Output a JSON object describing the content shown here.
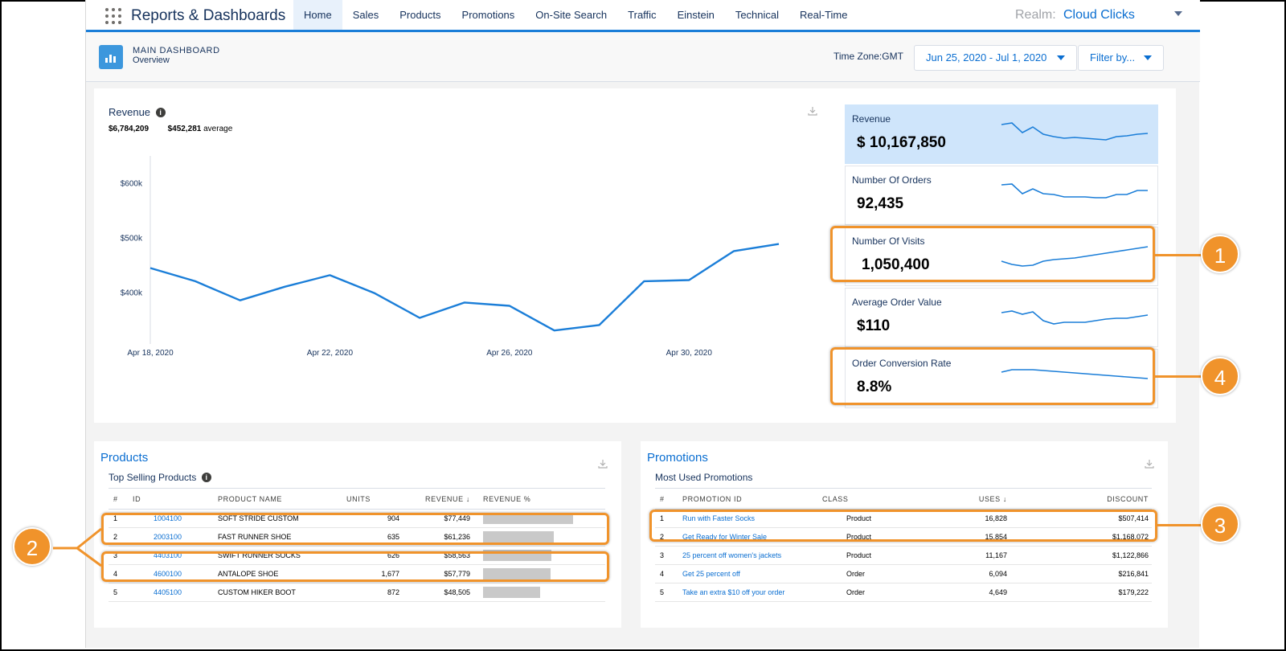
{
  "app": {
    "title": "Reports & Dashboards"
  },
  "nav": {
    "tabs": [
      "Home",
      "Sales",
      "Products",
      "Promotions",
      "On-Site Search",
      "Traffic",
      "Einstein",
      "Technical",
      "Real-Time"
    ],
    "active": "Home"
  },
  "realm": {
    "label": "Realm:",
    "value": "Cloud Clicks"
  },
  "header": {
    "title": "MAIN DASHBOARD",
    "subtitle": "Overview",
    "timezone": "Time Zone:GMT",
    "date_range": "Jun 25, 2020 - Jul 1, 2020",
    "filter": "Filter by..."
  },
  "revenue": {
    "title": "Revenue",
    "total": "$6,784,209",
    "average_value": "$452,281",
    "average_label": "average"
  },
  "chart_data": {
    "type": "line",
    "x": [
      "Apr 18, 2020",
      "Apr 19, 2020",
      "Apr 20, 2020",
      "Apr 21, 2020",
      "Apr 22, 2020",
      "Apr 23, 2020",
      "Apr 24, 2020",
      "Apr 25, 2020",
      "Apr 26, 2020",
      "Apr 27, 2020",
      "Apr 28, 2020",
      "Apr 29, 2020",
      "Apr 30, 2020",
      "May 1, 2020",
      "May 2, 2020"
    ],
    "values": [
      444000,
      420000,
      385000,
      410000,
      431000,
      398000,
      353000,
      381000,
      375000,
      330000,
      340000,
      420000,
      422000,
      475000,
      488000
    ],
    "xticks": [
      "Apr 18, 2020",
      "Apr 22, 2020",
      "Apr 26, 2020",
      "Apr 30, 2020"
    ],
    "yticks": [
      "$400k",
      "$500k",
      "$600k"
    ],
    "ylim": [
      320000,
      640000
    ],
    "color": "#1b7ed8",
    "title": "Revenue",
    "xlabel": "",
    "ylabel": ""
  },
  "kpis": [
    {
      "label": "Revenue",
      "value": "$ 10,167,850",
      "spark": [
        30,
        32,
        20,
        27,
        18,
        15,
        13,
        14,
        13,
        12,
        11,
        15,
        16,
        18,
        19
      ]
    },
    {
      "label": "Number Of Orders",
      "value": "92,435",
      "spark": [
        31,
        32,
        20,
        26,
        20,
        19,
        16,
        16,
        16,
        15,
        15,
        19,
        19,
        24,
        24
      ]
    },
    {
      "label": "Number Of Visits",
      "value": "1,050,400",
      "spark": [
        12,
        8,
        6,
        7,
        12,
        14,
        15,
        16,
        18,
        20,
        22,
        24,
        26,
        28,
        30
      ]
    },
    {
      "label": "Average Order Value",
      "value": "$110",
      "spark": [
        24,
        26,
        22,
        25,
        14,
        10,
        12,
        12,
        12,
        14,
        16,
        17,
        17,
        19,
        21
      ]
    },
    {
      "label": "Order Conversion Rate",
      "value": "8.8%",
      "spark": [
        26,
        29,
        29,
        29,
        28,
        27,
        26,
        25,
        24,
        23,
        22,
        21,
        20,
        19,
        18
      ]
    }
  ],
  "callouts": [
    "1",
    "2",
    "3",
    "4"
  ],
  "products": {
    "title": "Products",
    "subtitle": "Top Selling Products",
    "columns": [
      "#",
      "ID",
      "PRODUCT NAME",
      "UNITS",
      "REVENUE",
      "REVENUE %"
    ],
    "rows": [
      {
        "rank": "1",
        "id": "1004100",
        "name": "SOFT STRIDE CUSTOM",
        "units": "904",
        "revenue": "$77,449",
        "pct": 1.0
      },
      {
        "rank": "2",
        "id": "2003100",
        "name": "FAST RUNNER SHOE",
        "units": "635",
        "revenue": "$61,236",
        "pct": 0.79
      },
      {
        "rank": "3",
        "id": "4403100",
        "name": "SWIFT RUNNER SOCKS",
        "units": "626",
        "revenue": "$58,563",
        "pct": 0.76
      },
      {
        "rank": "4",
        "id": "4600100",
        "name": "ANTALOPE SHOE",
        "units": "1,677",
        "revenue": "$57,779",
        "pct": 0.75
      },
      {
        "rank": "5",
        "id": "4405100",
        "name": "CUSTOM HIKER BOOT",
        "units": "872",
        "revenue": "$48,505",
        "pct": 0.63
      }
    ]
  },
  "promotions": {
    "title": "Promotions",
    "subtitle": "Most Used Promotions",
    "columns": [
      "#",
      "PROMOTION ID",
      "CLASS",
      "USES",
      "DISCOUNT"
    ],
    "rows": [
      {
        "rank": "1",
        "id": "Run with Faster Socks",
        "class": "Product",
        "uses": "16,828",
        "discount": "$507,414"
      },
      {
        "rank": "2",
        "id": "Get Ready for Winter Sale",
        "class": "Product",
        "uses": "15,854",
        "discount": "$1,168,072"
      },
      {
        "rank": "3",
        "id": "25 percent off women's jackets",
        "class": "Product",
        "uses": "11,167",
        "discount": "$1,122,866"
      },
      {
        "rank": "4",
        "id": "Get 25 percent off",
        "class": "Order",
        "uses": "6,094",
        "discount": "$216,841"
      },
      {
        "rank": "5",
        "id": "Take an extra $10 off your order",
        "class": "Order",
        "uses": "4,649",
        "discount": "$179,222"
      }
    ]
  },
  "icons": {
    "apps": "waffle-icon",
    "dashboard": "bar-chart-icon",
    "info": "info-icon",
    "download": "download-icon",
    "sort": "arrow-down-icon"
  }
}
